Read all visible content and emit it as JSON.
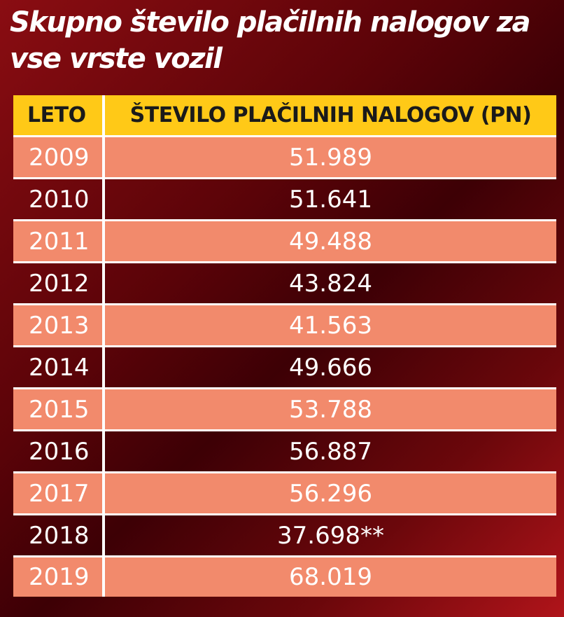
{
  "title": "Skupno število plačilnih nalogov za vse vrste vozil",
  "chart_data": {
    "type": "table",
    "title": "Skupno število plačilnih nalogov za vse vrste vozil",
    "columns": [
      "LETO",
      "ŠTEVILO PLAČILNIH NALOGOV (PN)"
    ],
    "rows": [
      {
        "year": "2009",
        "count": "51.989"
      },
      {
        "year": "2010",
        "count": "51.641"
      },
      {
        "year": "2011",
        "count": "49.488"
      },
      {
        "year": "2012",
        "count": "43.824"
      },
      {
        "year": "2013",
        "count": "41.563"
      },
      {
        "year": "2014",
        "count": "49.666"
      },
      {
        "year": "2015",
        "count": "53.788"
      },
      {
        "year": "2016",
        "count": "56.887"
      },
      {
        "year": "2017",
        "count": "56.296"
      },
      {
        "year": "2018",
        "count": "37.698**"
      },
      {
        "year": "2019",
        "count": "68.019"
      }
    ]
  },
  "colors": {
    "header_bg": "#ffc917",
    "row_highlight_bg": "#f28a6c",
    "background_dark": "#4a0206",
    "background_red": "#b0141a",
    "text_light": "#ffffff",
    "text_dark": "#1a1a1a"
  }
}
